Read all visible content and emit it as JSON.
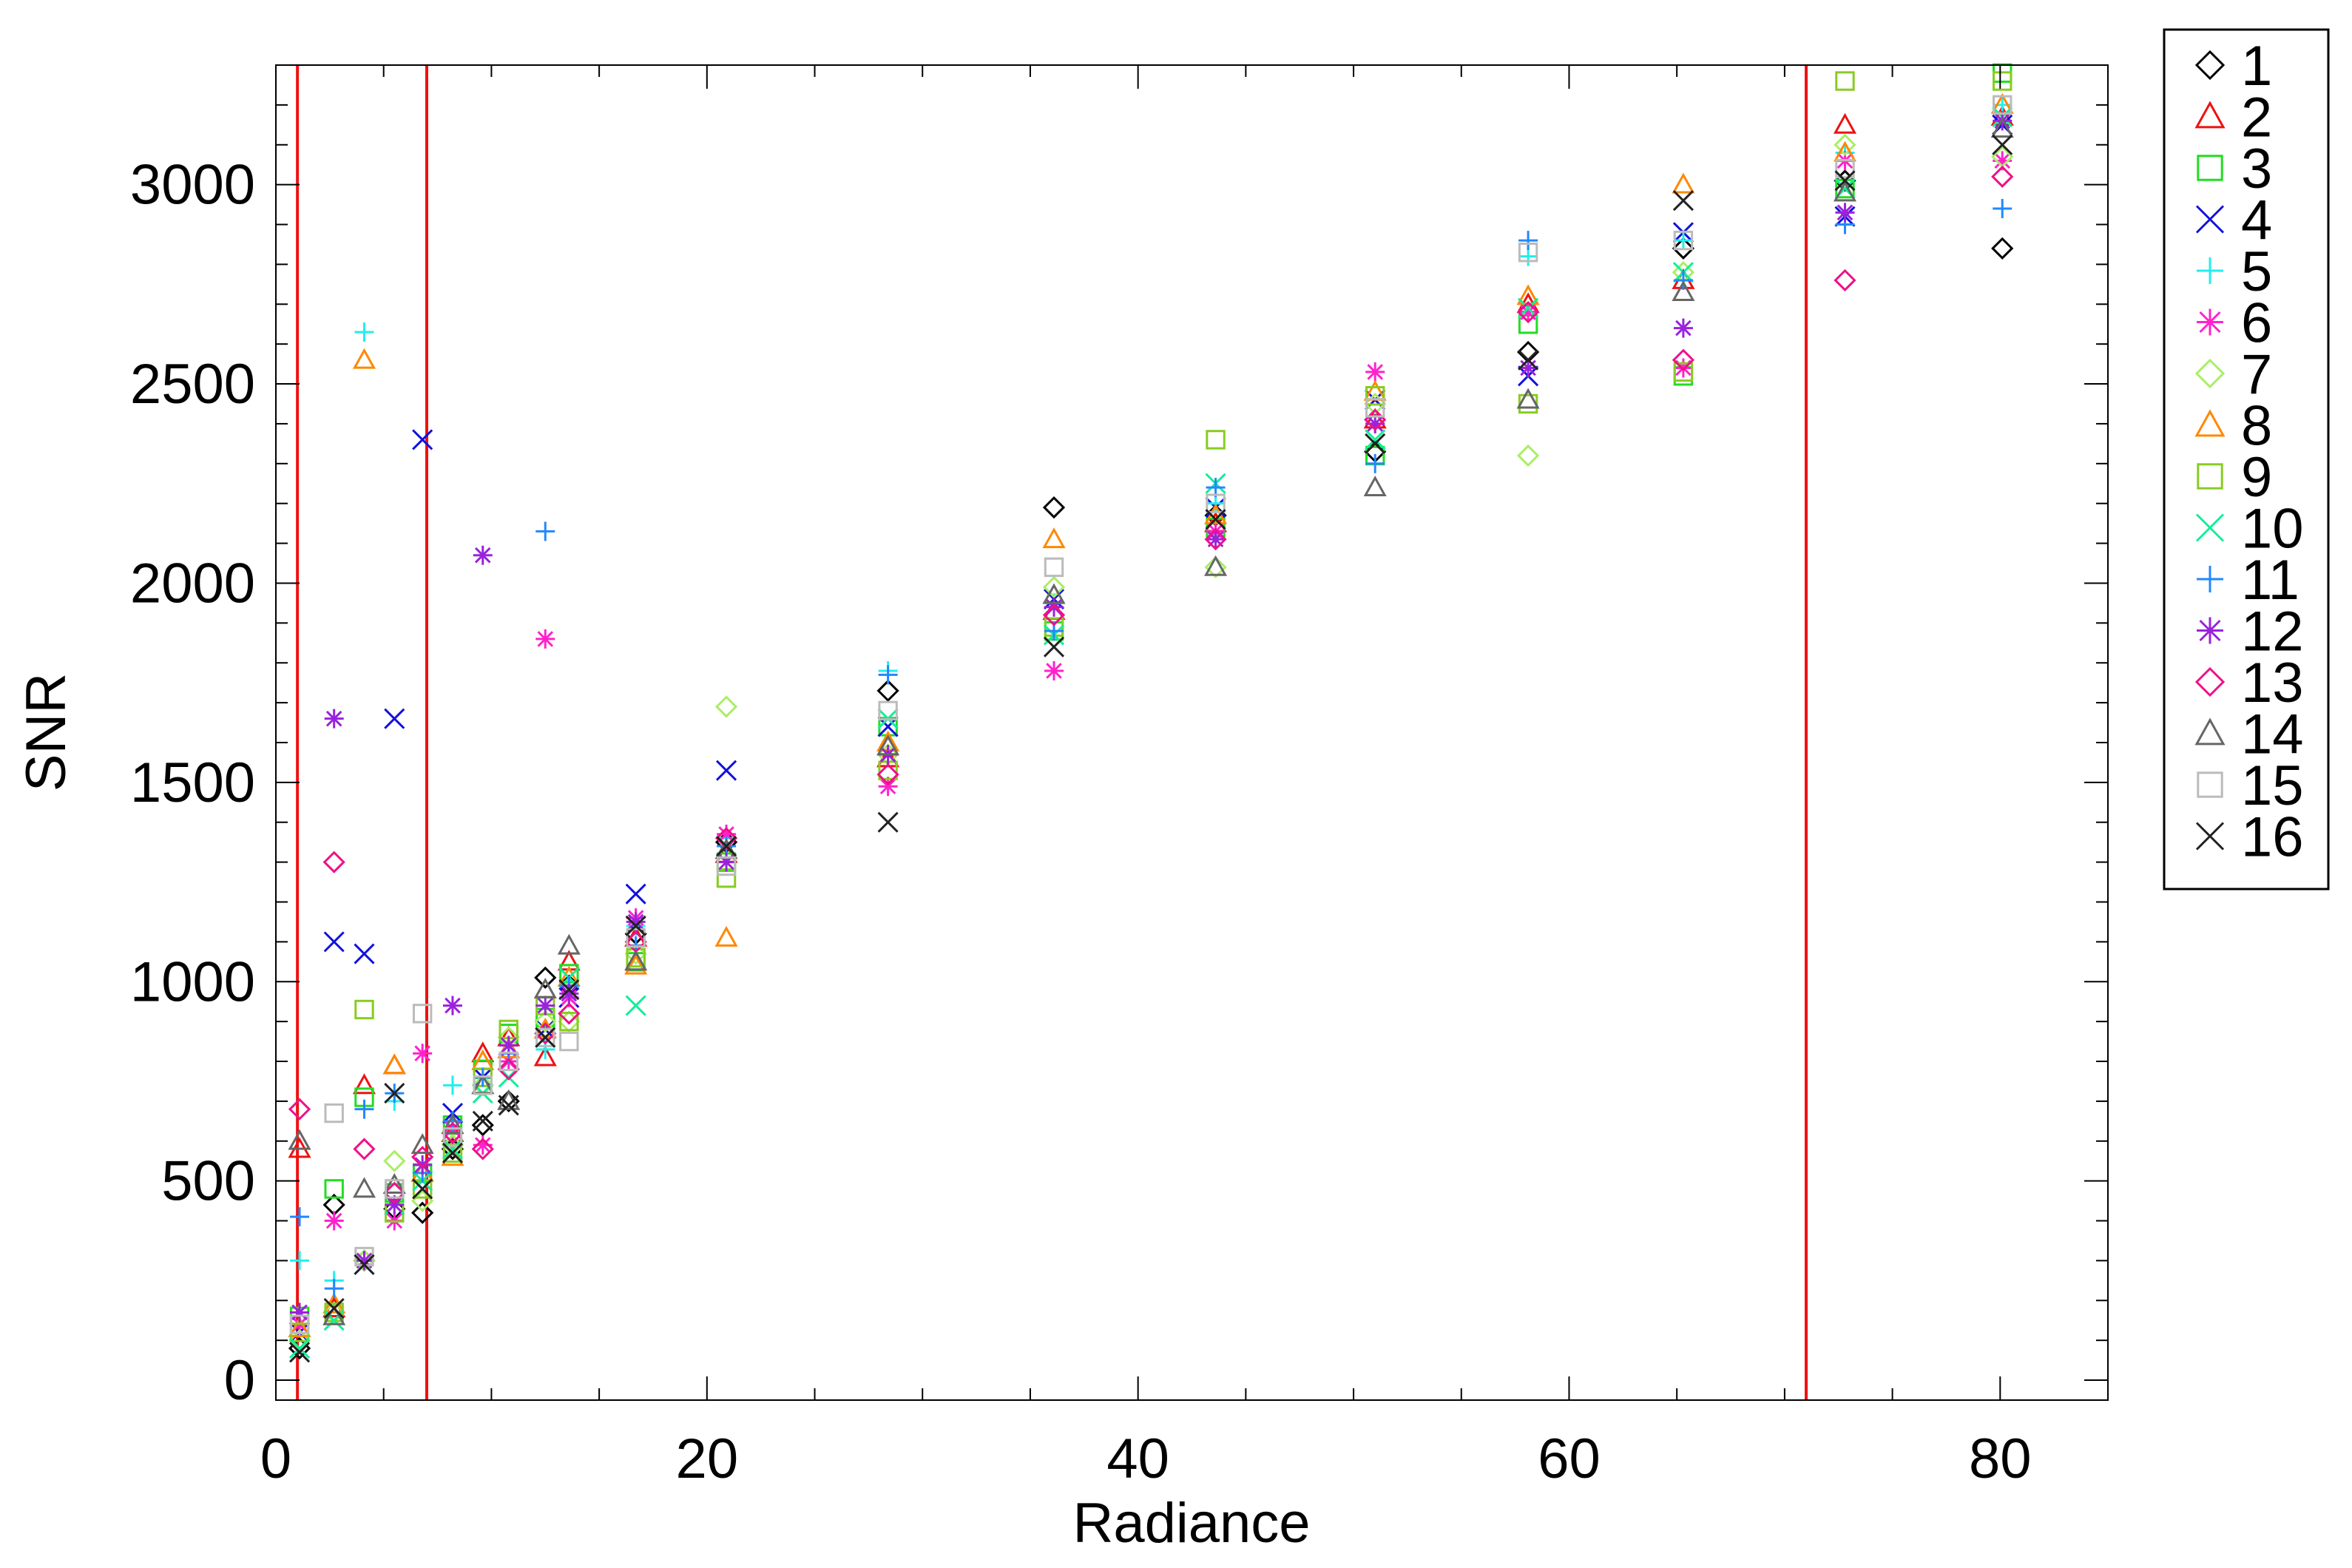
{
  "chart_data": {
    "type": "scatter",
    "title": "",
    "xlabel": "Radiance",
    "ylabel": "SNR",
    "xlim": [
      0,
      85
    ],
    "ylim": [
      -50,
      3300
    ],
    "xticks": [
      0,
      20,
      40,
      60,
      80
    ],
    "yticks": [
      0,
      500,
      1000,
      1500,
      2000,
      2500,
      3000
    ],
    "xtick_labels": [
      "0",
      "20",
      "40",
      "60",
      "80"
    ],
    "ytick_labels": [
      "0",
      "500",
      "1000",
      "1500",
      "2000",
      "2500",
      "3000"
    ],
    "grid": false,
    "legend_position": "outside-right",
    "vertical_reference_lines": [
      1,
      7,
      71
    ],
    "reference_line_color": "#ee1111",
    "radiance_levels": [
      1.1,
      2.7,
      4.1,
      5.5,
      6.8,
      8.2,
      9.6,
      10.8,
      12.5,
      13.6,
      16.7,
      20.9,
      28.4,
      36.1,
      43.6,
      51.0,
      58.1,
      65.3,
      72.8,
      80.1
    ],
    "series": [
      {
        "name": "1",
        "symbol": "diamond",
        "color": "#000000",
        "y": [
          80,
          440,
          300,
          430,
          420,
          580,
          640,
          700,
          1010,
          990,
          1120,
          1350,
          1730,
          2190,
          2170,
          2330,
          2580,
          2840,
          3010,
          2840
        ]
      },
      {
        "name": "2",
        "symbol": "triangle",
        "color": "#ee1111",
        "y": [
          580,
          180,
          740,
          790,
          520,
          620,
          820,
          860,
          810,
          1050,
          1110,
          1320,
          1560,
          1930,
          2150,
          2410,
          2700,
          2760,
          3150,
          3170
        ]
      },
      {
        "name": "3",
        "symbol": "square",
        "color": "#22dd22",
        "y": [
          160,
          480,
          710,
          470,
          520,
          640,
          780,
          870,
          910,
          1020,
          1050,
          1300,
          1640,
          1880,
          2140,
          2320,
          2650,
          2520,
          2990,
          3280
        ]
      },
      {
        "name": "4",
        "symbol": "x",
        "color": "#1111dd",
        "y": [
          120,
          1100,
          1070,
          1660,
          2360,
          670,
          760,
          840,
          880,
          960,
          1220,
          1530,
          1640,
          1960,
          2190,
          2460,
          2520,
          2880,
          2920,
          3150
        ]
      },
      {
        "name": "5",
        "symbol": "plus",
        "color": "#22eeee",
        "y": [
          300,
          250,
          2630,
          700,
          540,
          740,
          760,
          820,
          830,
          990,
          1140,
          1360,
          1780,
          1950,
          2200,
          2400,
          2820,
          2860,
          3080,
          3200
        ]
      },
      {
        "name": "6",
        "symbol": "asterisk",
        "color": "#ff22cc",
        "y": [
          140,
          400,
          300,
          400,
          820,
          630,
          590,
          800,
          1860,
          960,
          1160,
          1370,
          1490,
          1780,
          2130,
          2530,
          2680,
          2540,
          3060,
          3060
        ]
      },
      {
        "name": "7",
        "symbol": "diamond",
        "color": "#aaee66",
        "y": [
          100,
          170,
          300,
          550,
          450,
          590,
          740,
          860,
          900,
          900,
          1070,
          1690,
          1570,
          1990,
          2040,
          2450,
          2320,
          2780,
          3100,
          3070
        ]
      },
      {
        "name": "8",
        "symbol": "triangle",
        "color": "#ff8800",
        "y": [
          130,
          190,
          2560,
          790,
          520,
          560,
          800,
          830,
          880,
          1010,
          1040,
          1110,
          1600,
          2110,
          2170,
          2480,
          2720,
          3000,
          3080,
          3200
        ]
      },
      {
        "name": "9",
        "symbol": "square",
        "color": "#88cc22",
        "y": [
          120,
          170,
          930,
          420,
          480,
          570,
          760,
          880,
          940,
          900,
          1060,
          1260,
          1530,
          1890,
          2360,
          2470,
          2450,
          2530,
          3260,
          3260
        ]
      },
      {
        "name": "10",
        "symbol": "x",
        "color": "#11ee99",
        "y": [
          80,
          150,
          290,
          440,
          500,
          580,
          720,
          760,
          860,
          1010,
          940,
          1340,
          1660,
          1870,
          2250,
          2360,
          2690,
          2780,
          2990,
          3170
        ]
      },
      {
        "name": "11",
        "symbol": "plus",
        "color": "#2288ff",
        "y": [
          410,
          230,
          680,
          720,
          520,
          650,
          760,
          820,
          2130,
          990,
          1090,
          1340,
          1770,
          1880,
          2240,
          2300,
          2860,
          2760,
          2900,
          2940
        ]
      },
      {
        "name": "12",
        "symbol": "asterisk",
        "color": "#9922dd",
        "y": [
          170,
          1660,
          300,
          440,
          540,
          940,
          2070,
          840,
          940,
          970,
          1150,
          1300,
          1570,
          1940,
          2110,
          2400,
          2540,
          2640,
          2930,
          3160
        ]
      },
      {
        "name": "13",
        "symbol": "diamond",
        "color": "#ee1188",
        "y": [
          680,
          1300,
          580,
          470,
          560,
          620,
          580,
          780,
          870,
          920,
          1100,
          1360,
          1520,
          1920,
          2110,
          2410,
          2680,
          2560,
          2760,
          3020
        ]
      },
      {
        "name": "14",
        "symbol": "triangle",
        "color": "#666666",
        "y": [
          600,
          160,
          480,
          490,
          590,
          640,
          740,
          700,
          980,
          1090,
          1050,
          1330,
          1590,
          1970,
          2040,
          2240,
          2460,
          2730,
          2980,
          3140
        ]
      },
      {
        "name": "15",
        "symbol": "square",
        "color": "#bbbbbb",
        "y": [
          140,
          670,
          310,
          480,
          920,
          610,
          740,
          800,
          860,
          850,
          1110,
          1290,
          1680,
          2040,
          2200,
          2440,
          2830,
          2860,
          3040,
          3200
        ]
      },
      {
        "name": "16",
        "symbol": "x",
        "color": "#222222",
        "y": [
          70,
          180,
          290,
          720,
          480,
          570,
          650,
          690,
          860,
          980,
          1140,
          1340,
          1400,
          1840,
          2160,
          2350,
          2560,
          2960,
          3010,
          3100
        ]
      }
    ]
  }
}
